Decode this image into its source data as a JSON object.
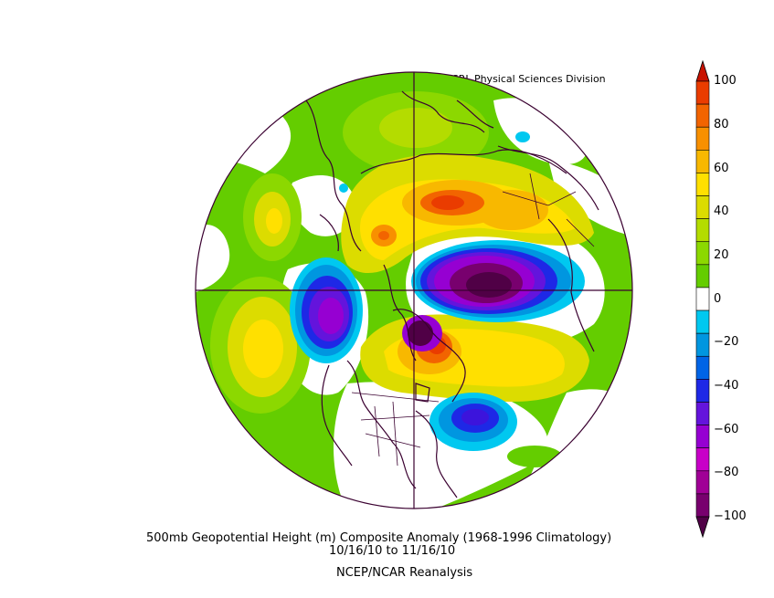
{
  "credit": "NOAA/ESRL Physical Sciences Division",
  "title": "500mb Geopotential Height (m) Composite Anomaly (1968-1996 Climatology)",
  "date_range": "10/16/10  to 11/16/10",
  "source": "NCEP/NCAR Reanalysis",
  "map": {
    "projection": "north polar stereographic",
    "variable": "500mb geopotential height anomaly",
    "units": "m"
  },
  "colorbar": {
    "ticks": [
      "100",
      "80",
      "60",
      "40",
      "20",
      "0",
      "−20",
      "−40",
      "−60",
      "−80",
      "−100"
    ],
    "bins": [
      {
        "range": "above 100",
        "color": "#c81200"
      },
      {
        "range": "90 to 100",
        "color": "#ea3c00"
      },
      {
        "range": "80 to 90",
        "color": "#f26400"
      },
      {
        "range": "70 to 80",
        "color": "#f89000"
      },
      {
        "range": "60 to 70",
        "color": "#f8b800"
      },
      {
        "range": "50 to 60",
        "color": "#ffe000"
      },
      {
        "range": "40 to 50",
        "color": "#dcdc00"
      },
      {
        "range": "30 to 40",
        "color": "#b4dc00"
      },
      {
        "range": "20 to 30",
        "color": "#8cd800"
      },
      {
        "range": "10 to 20",
        "color": "#64cd00"
      },
      {
        "range": "-10 to 10",
        "color": "#ffffff"
      },
      {
        "range": "-20 to -10",
        "color": "#00c8f0"
      },
      {
        "range": "-30 to -20",
        "color": "#0096e0"
      },
      {
        "range": "-40 to -30",
        "color": "#0064e6"
      },
      {
        "range": "-50 to -40",
        "color": "#1e28e6"
      },
      {
        "range": "-60 to -50",
        "color": "#6414dc"
      },
      {
        "range": "-70 to -60",
        "color": "#9600d2"
      },
      {
        "range": "-80 to -70",
        "color": "#c800c8"
      },
      {
        "range": "-90 to -80",
        "color": "#a00096"
      },
      {
        "range": "-100 to -90",
        "color": "#78006e"
      },
      {
        "range": "below -100",
        "color": "#500046"
      }
    ]
  }
}
